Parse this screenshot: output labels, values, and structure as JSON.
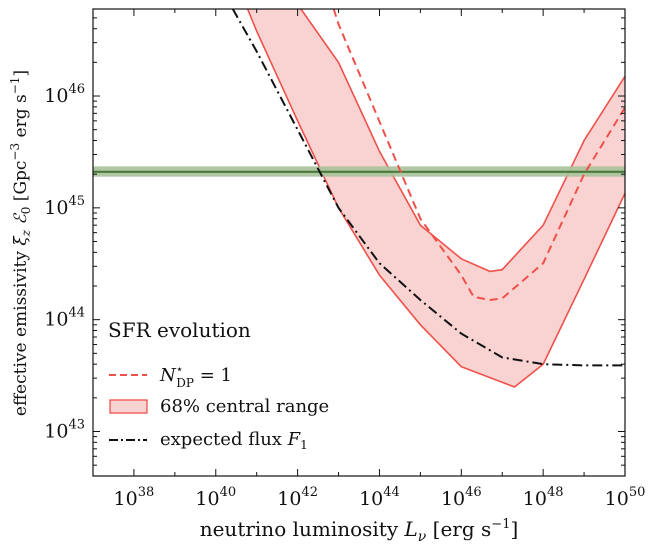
{
  "chart_data": {
    "type": "line",
    "x_scale": "log",
    "y_scale": "log",
    "xlim": [
      1e+37,
      1e+50
    ],
    "ylim": [
      4e+42,
      6e+46
    ],
    "xlabel": "neutrino luminosity L_ν [erg s⁻¹]",
    "ylabel": "effective emissivity ξ_z ℰ₀ [Gpc⁻³ erg s⁻¹]",
    "x_ticks": [
      {
        "value": 1e+38,
        "base": "10",
        "exp": "38"
      },
      {
        "value": 1e+40,
        "base": "10",
        "exp": "40"
      },
      {
        "value": 1e+42,
        "base": "10",
        "exp": "42"
      },
      {
        "value": 1e+44,
        "base": "10",
        "exp": "44"
      },
      {
        "value": 1e+46,
        "base": "10",
        "exp": "46"
      },
      {
        "value": 1e+48,
        "base": "10",
        "exp": "48"
      },
      {
        "value": 1e+50,
        "base": "10",
        "exp": "50"
      }
    ],
    "y_ticks": [
      {
        "value": 1e+43,
        "base": "10",
        "exp": "43"
      },
      {
        "value": 1e+44,
        "base": "10",
        "exp": "44"
      },
      {
        "value": 1e+45,
        "base": "10",
        "exp": "45"
      },
      {
        "value": 1e+46,
        "base": "10",
        "exp": "46"
      }
    ],
    "horizontal_band": {
      "y_center": 2.1e+45,
      "y_low": 1.9e+45,
      "y_high": 2.35e+45,
      "color": "#4a7a3a",
      "band_color": "#a9c29a"
    },
    "series": [
      {
        "name": "N*_DP = 1",
        "style": "dashed",
        "color": "#f0504a",
        "points": [
          [
            7.6e+42,
            6e+46
          ],
          [
            1e+43,
            4.4e+46
          ],
          [
            1e+44,
            5.9e+45
          ],
          [
            1e+45,
            8e+44
          ],
          [
            1e+46,
            2.5e+44
          ],
          [
            2e+46,
            1.6e+44
          ],
          [
            5e+46,
            1.5e+44
          ],
          [
            1e+47,
            1.55e+44
          ],
          [
            1e+48,
            3.2e+44
          ],
          [
            1e+49,
            2e+45
          ],
          [
            1e+50,
            7.9e+45
          ]
        ]
      },
      {
        "name": "expected flux F_1",
        "style": "dashdot",
        "color": "#111111",
        "points": [
          [
            2.6e+40,
            6e+46
          ],
          [
            1e+41,
            2.5e+46
          ],
          [
            1e+42,
            5e+45
          ],
          [
            1e+43,
            1e+45
          ],
          [
            1e+44,
            3.2e+44
          ],
          [
            1e+45,
            1.5e+44
          ],
          [
            1e+46,
            7.5e+43
          ],
          [
            1e+47,
            4.6e+43
          ],
          [
            1e+48,
            4e+43
          ],
          [
            1e+49,
            3.9e+43
          ],
          [
            1e+50,
            3.9e+43
          ]
        ]
      }
    ],
    "band": {
      "name": "68% central range",
      "fill": "#f8d3d1",
      "edge": "#f0504a",
      "upper": [
        [
          1.2e+42,
          6e+46
        ],
        [
          1e+43,
          2e+46
        ],
        [
          1e+44,
          3.2e+45
        ],
        [
          1e+45,
          7e+44
        ],
        [
          1e+46,
          3.5e+44
        ],
        [
          5e+46,
          2.7e+44
        ],
        [
          1e+47,
          2.8e+44
        ],
        [
          1e+48,
          7e+44
        ],
        [
          1e+49,
          4e+45
        ],
        [
          1e+50,
          1.5e+46
        ]
      ],
      "lower": [
        [
          6e+40,
          6e+46
        ],
        [
          1e+41,
          3.8e+46
        ],
        [
          1e+42,
          6e+45
        ],
        [
          1e+43,
          1e+45
        ],
        [
          1e+44,
          2.5e+44
        ],
        [
          1e+45,
          9e+43
        ],
        [
          1e+46,
          3.8e+43
        ],
        [
          2e+47,
          2.5e+43
        ],
        [
          1e+48,
          4e+43
        ],
        [
          1e+49,
          2.3e+44
        ],
        [
          1e+50,
          1.35e+45
        ]
      ]
    },
    "legend": {
      "placement": "lower-left",
      "title": "SFR evolution",
      "entries": [
        {
          "label": "N*_DP = 1",
          "kind": "dashed"
        },
        {
          "label": "68% central range",
          "kind": "patch"
        },
        {
          "label": "expected flux F_1",
          "kind": "dashdot"
        }
      ]
    }
  },
  "labels": {
    "xlabel_main": "neutrino luminosity ",
    "xlabel_sym": "L",
    "xlabel_sub": "ν",
    "xlabel_unit_a": " [erg s",
    "xlabel_unit_exp": "−1",
    "xlabel_unit_b": "]",
    "ylabel_main": "effective emissivity  ",
    "ylabel_sym1": "ξ",
    "ylabel_sub1": "z",
    "ylabel_sym2": " ℰ",
    "ylabel_sub2": "0",
    "ylabel_unit_a": " [Gpc",
    "ylabel_unit_exp1": "−3",
    "ylabel_unit_b": " erg s",
    "ylabel_unit_exp2": "−1",
    "ylabel_unit_c": "]",
    "legend_title": "SFR evolution",
    "leg1_sym": "N",
    "leg1_sup": "⋆",
    "leg1_sub": "DP",
    "leg1_rest": " = 1",
    "leg2": "68% central range",
    "leg3_a": "expected flux ",
    "leg3_sym": "F",
    "leg3_sub": "1"
  }
}
